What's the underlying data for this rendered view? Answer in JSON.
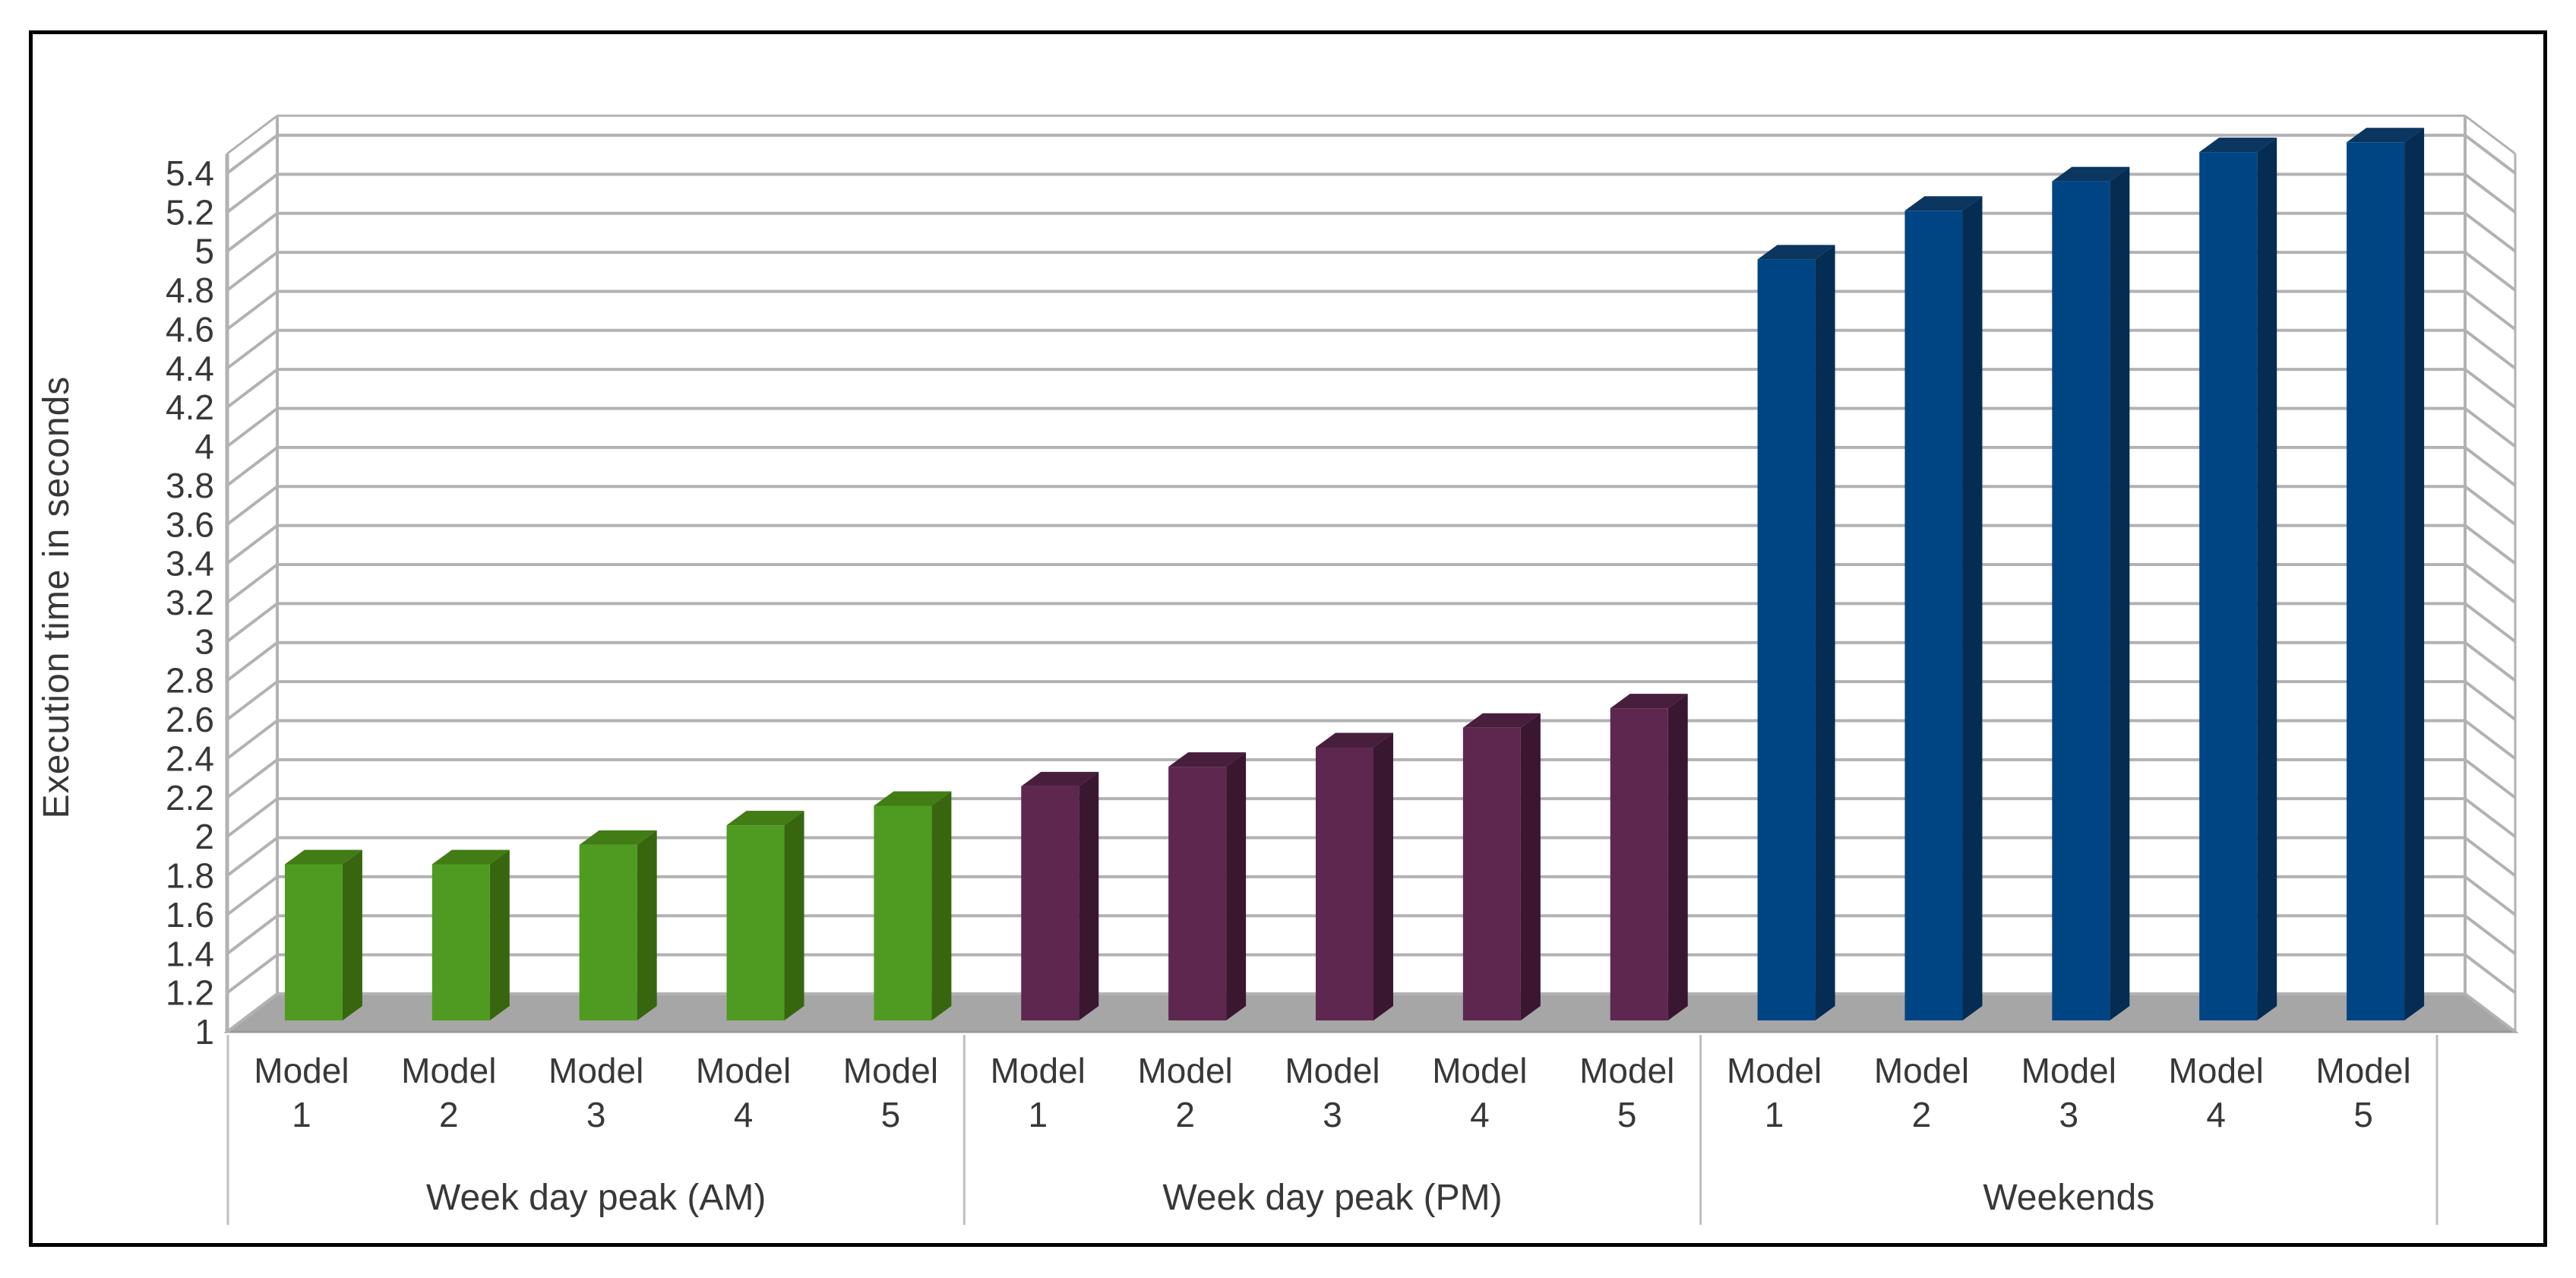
{
  "chart_data": {
    "type": "bar",
    "style": "3d-column",
    "title": "",
    "xlabel": "",
    "ylabel": "Execution time in seconds",
    "legend": "none",
    "grid": true,
    "y_axis": {
      "min": 1,
      "max": 5.5,
      "major_tick": 0.2,
      "tick_labels": [
        "1",
        "1.2",
        "1.4",
        "1.6",
        "1.8",
        "2",
        "2.2",
        "2.4",
        "2.6",
        "2.8",
        "3",
        "3.2",
        "3.4",
        "3.6",
        "3.8",
        "4",
        "4.2",
        "4.4",
        "4.6",
        "4.8",
        "5",
        "5.2",
        "5.4"
      ]
    },
    "categories_per_group": [
      "Model 1",
      "Model 2",
      "Model 3",
      "Model 4",
      "Model 5"
    ],
    "series": [
      {
        "name": "Week day peak (AM)",
        "values": [
          1.8,
          1.8,
          1.9,
          2.0,
          2.1
        ],
        "color_front": "#4f9b21",
        "color_side": "#38660f",
        "color_top": "#417c15"
      },
      {
        "name": "Week day peak (PM)",
        "values": [
          2.2,
          2.3,
          2.4,
          2.5,
          2.6
        ],
        "color_front": "#5e2750",
        "color_side": "#391731",
        "color_top": "#471e3c"
      },
      {
        "name": "Weekends",
        "values": [
          4.9,
          5.15,
          5.3,
          5.45,
          5.5
        ],
        "color_front": "#004583",
        "color_side": "#052c52",
        "color_top": "#0a3660"
      }
    ],
    "colors": {
      "gridline": "#b2b2b5",
      "floor": "#a6a6a6",
      "floor_edge": "#999999",
      "axis_text": "#383838",
      "separator": "#bfbfbf",
      "frame": "#000000"
    }
  }
}
